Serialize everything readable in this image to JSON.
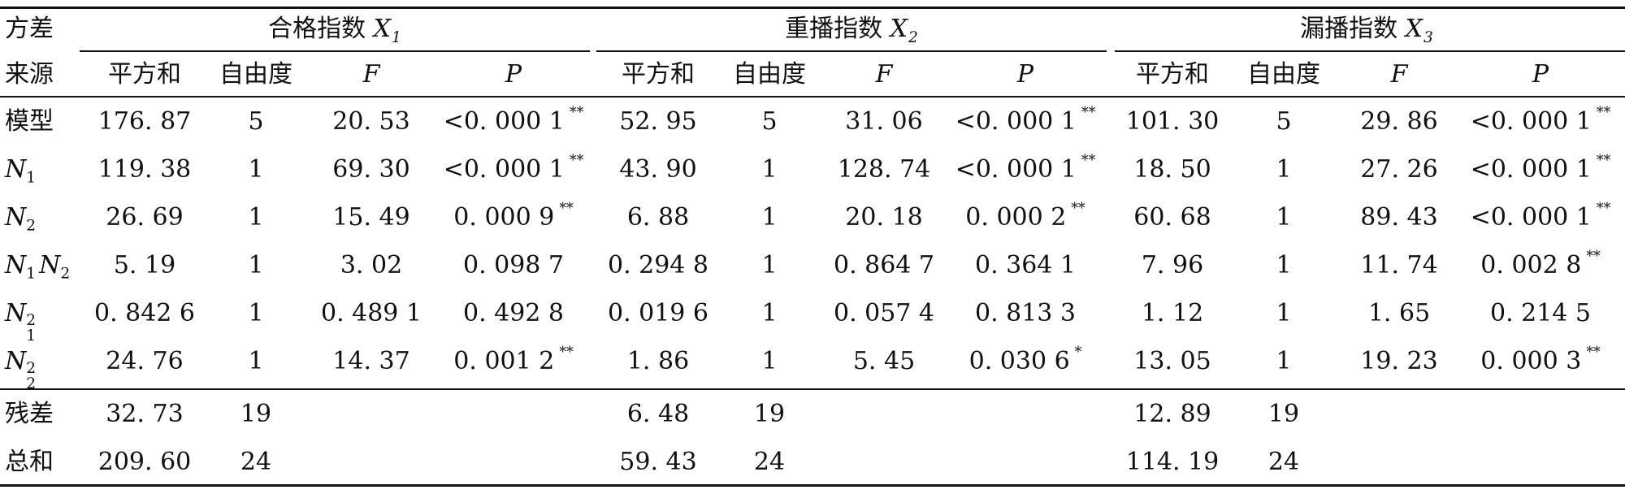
{
  "header": {
    "col0_line1": "方差",
    "col0_line2": "来源",
    "groups": [
      {
        "name": "合格指数",
        "var": "X",
        "sub": "1"
      },
      {
        "name": "重播指数",
        "var": "X",
        "sub": "2"
      },
      {
        "name": "漏播指数",
        "var": "X",
        "sub": "3"
      }
    ],
    "sub_cols": [
      "平方和",
      "自由度",
      "F",
      "P"
    ]
  },
  "rows": [
    {
      "label": "模型",
      "vals": [
        [
          "176. 87",
          "5",
          "20. 53",
          "<0. 000 1",
          "**"
        ],
        [
          "52. 95",
          "5",
          "31. 06",
          "<0. 000 1",
          "**"
        ],
        [
          "101. 30",
          "5",
          "29. 86",
          "<0. 000 1",
          "**"
        ]
      ]
    },
    {
      "label": "N",
      "label_sub": "1",
      "vals": [
        [
          "119. 38",
          "1",
          "69. 30",
          "<0. 000 1",
          "**"
        ],
        [
          "43. 90",
          "1",
          "128. 74",
          "<0. 000 1",
          "**"
        ],
        [
          "18. 50",
          "1",
          "27. 26",
          "<0. 000 1",
          "**"
        ]
      ]
    },
    {
      "label": "N",
      "label_sub": "2",
      "vals": [
        [
          "26. 69",
          "1",
          "15. 49",
          "0. 000 9",
          "**"
        ],
        [
          "6. 88",
          "1",
          "20. 18",
          "0. 000 2",
          "**"
        ],
        [
          "60. 68",
          "1",
          "89. 43",
          "<0. 000 1",
          "**"
        ]
      ]
    },
    {
      "label": "N",
      "label_sub": "1",
      "label2": "N",
      "label2_sub": "2",
      "vals": [
        [
          "5. 19",
          "1",
          "3. 02",
          "0. 098 7",
          ""
        ],
        [
          "0. 294 8",
          "1",
          "0. 864 7",
          "0. 364 1",
          ""
        ],
        [
          "7. 96",
          "1",
          "11. 74",
          "0. 002 8",
          "**"
        ]
      ]
    },
    {
      "label": "N",
      "label_sub": "1",
      "label_sup": "2",
      "vals": [
        [
          "0. 842 6",
          "1",
          "0. 489 1",
          "0. 492 8",
          ""
        ],
        [
          "0. 019 6",
          "1",
          "0. 057 4",
          "0. 813 3",
          ""
        ],
        [
          "1. 12",
          "1",
          "1. 65",
          "0. 214 5",
          ""
        ]
      ]
    },
    {
      "label": "N",
      "label_sub": "2",
      "label_sup": "2",
      "vals": [
        [
          "24. 76",
          "1",
          "14. 37",
          "0. 001 2",
          "**"
        ],
        [
          "1. 86",
          "1",
          "5. 45",
          "0. 030 6",
          "*"
        ],
        [
          "13. 05",
          "1",
          "19. 23",
          "0. 000 3",
          "**"
        ]
      ]
    },
    {
      "label": "残差",
      "vals": [
        [
          "32. 73",
          "19",
          "",
          "",
          ""
        ],
        [
          "6. 48",
          "19",
          "",
          "",
          ""
        ],
        [
          "12. 89",
          "19",
          "",
          "",
          ""
        ]
      ]
    },
    {
      "label": "总和",
      "vals": [
        [
          "209. 60",
          "24",
          "",
          "",
          ""
        ],
        [
          "59. 43",
          "24",
          "",
          "",
          ""
        ],
        [
          "114. 19",
          "24",
          "",
          "",
          ""
        ]
      ]
    }
  ]
}
